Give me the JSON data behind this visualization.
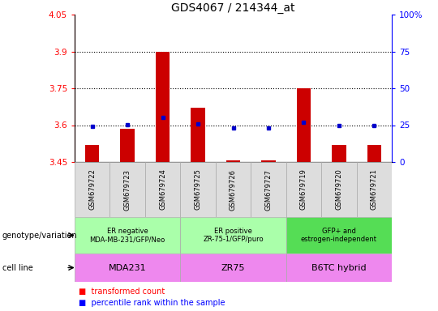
{
  "title": "GDS4067 / 214344_at",
  "samples": [
    "GSM679722",
    "GSM679723",
    "GSM679724",
    "GSM679725",
    "GSM679726",
    "GSM679727",
    "GSM679719",
    "GSM679720",
    "GSM679721"
  ],
  "transformed_counts": [
    3.52,
    3.585,
    3.9,
    3.67,
    3.455,
    3.455,
    3.75,
    3.52,
    3.52
  ],
  "percentile_ranks": [
    24,
    25.5,
    30,
    26,
    23,
    23,
    27,
    25,
    25
  ],
  "ylim_left": [
    3.45,
    4.05
  ],
  "ylim_right": [
    0,
    100
  ],
  "yticks_left": [
    3.45,
    3.6,
    3.75,
    3.9,
    4.05
  ],
  "yticks_left_labels": [
    "3.45",
    "3.6",
    "3.75",
    "3.9",
    "4.05"
  ],
  "yticks_right": [
    0,
    25,
    50,
    75,
    100
  ],
  "yticks_right_labels": [
    "0",
    "25",
    "50",
    "75",
    "100%"
  ],
  "hlines": [
    3.6,
    3.75,
    3.9
  ],
  "bar_color": "#cc0000",
  "dot_color": "#0000cc",
  "bar_bottom": 3.45,
  "groups": [
    {
      "label": "ER negative\nMDA-MB-231/GFP/Neo",
      "start": 0,
      "end": 3,
      "color": "#aaffaa"
    },
    {
      "label": "ER positive\nZR-75-1/GFP/puro",
      "start": 3,
      "end": 6,
      "color": "#aaffaa"
    },
    {
      "label": "GFP+ and\nestrogen-independent",
      "start": 6,
      "end": 9,
      "color": "#55cc55"
    }
  ],
  "cell_lines": [
    {
      "label": "MDA231",
      "start": 0,
      "end": 3,
      "color": "#ee88ee"
    },
    {
      "label": "ZR75",
      "start": 3,
      "end": 6,
      "color": "#ee88ee"
    },
    {
      "label": "B6TC hybrid",
      "start": 6,
      "end": 9,
      "color": "#ee88ee"
    }
  ],
  "title_fontsize": 10,
  "tick_fontsize": 7.5,
  "bar_width": 0.4,
  "sample_label_fontsize": 6,
  "geno_fontsize": 6,
  "cell_fontsize": 8
}
